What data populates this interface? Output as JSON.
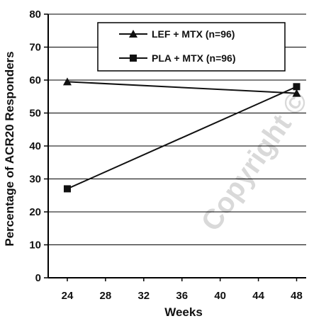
{
  "chart_data": {
    "type": "line",
    "xlabel": "Weeks",
    "ylabel": "Percentage of ACR20 Responders",
    "x_ticks": [
      "24",
      "28",
      "32",
      "36",
      "40",
      "44",
      "48"
    ],
    "y_ticks": [
      "0",
      "10",
      "20",
      "30",
      "40",
      "50",
      "60",
      "70",
      "80"
    ],
    "xlim": [
      22,
      49
    ],
    "ylim": [
      0,
      80
    ],
    "grid": "horizontal",
    "legend_position": "top-right",
    "series": [
      {
        "name": "LEF + MTX (n=96)",
        "marker": "triangle",
        "x": [
          24,
          48
        ],
        "y": [
          59.5,
          56
        ]
      },
      {
        "name": "PLA + MTX (n=96)",
        "marker": "square",
        "x": [
          24,
          48
        ],
        "y": [
          27,
          58
        ]
      }
    ]
  },
  "watermark_text": "Copyright ©"
}
